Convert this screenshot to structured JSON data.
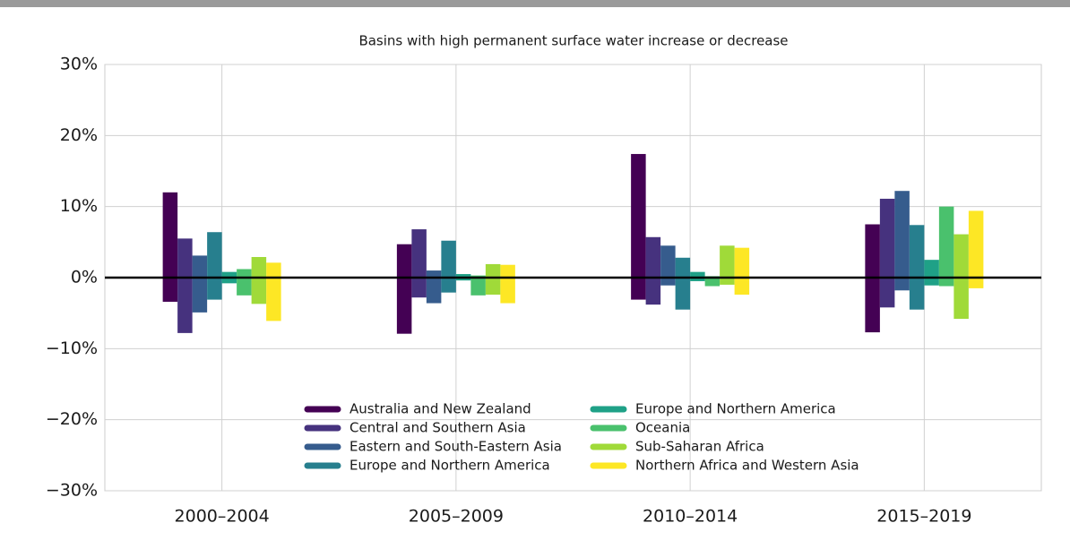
{
  "chart_data": {
    "type": "bar",
    "title": "Basins with high permanent surface water increase or decrease",
    "categories": [
      "2000–2004",
      "2005–2009",
      "2010–2014",
      "2015–2019"
    ],
    "series": [
      {
        "name": "Australia and New Zealand",
        "color": "#440154",
        "increase": [
          12,
          4.7,
          17.4,
          7.5
        ],
        "decrease": [
          -3.4,
          -7.9,
          -3.1,
          -7.7
        ]
      },
      {
        "name": "Central and Southern Asia",
        "color": "#46327e",
        "increase": [
          5.5,
          6.8,
          5.7,
          11.1
        ],
        "decrease": [
          -7.8,
          -2.8,
          -3.8,
          -4.2
        ]
      },
      {
        "name": "Eastern and South-Eastern Asia",
        "color": "#365c8d",
        "increase": [
          3.1,
          1.0,
          4.5,
          12.2
        ],
        "decrease": [
          -4.9,
          -3.6,
          -1.1,
          -1.8
        ]
      },
      {
        "name": "Europe and Northern America",
        "color": "#277f8e",
        "increase": [
          6.4,
          5.2,
          2.8,
          7.4
        ],
        "decrease": [
          -3.1,
          -2.1,
          -4.5,
          -4.5
        ]
      },
      {
        "name": "Europe and Northern America",
        "color": "#1fa187",
        "increase": [
          0.8,
          0.5,
          0.8,
          2.5
        ],
        "decrease": [
          -0.8,
          -0.4,
          -0.5,
          -1.1
        ]
      },
      {
        "name": "Oceania",
        "color": "#4ac16d",
        "increase": [
          1.2,
          0.3,
          0.2,
          10.0
        ],
        "decrease": [
          -2.5,
          -2.5,
          -1.2,
          -1.2
        ]
      },
      {
        "name": "Sub-Saharan Africa",
        "color": "#a0da39",
        "increase": [
          2.9,
          1.9,
          4.5,
          6.1
        ],
        "decrease": [
          -3.7,
          -2.4,
          -1.0,
          -5.8
        ]
      },
      {
        "name": "Northern Africa and Western Asia",
        "color": "#fde725",
        "increase": [
          2.1,
          1.8,
          4.2,
          9.4
        ],
        "decrease": [
          -6.1,
          -3.6,
          -2.4,
          -1.5
        ]
      }
    ],
    "ylim": [
      -30,
      30
    ],
    "yticks": [
      {
        "value": -30,
        "label": "−30%"
      },
      {
        "value": -20,
        "label": "−20%"
      },
      {
        "value": -10,
        "label": "−10%"
      },
      {
        "value": 0,
        "label": "0%"
      },
      {
        "value": 10,
        "label": "10%"
      },
      {
        "value": 20,
        "label": "20%"
      },
      {
        "value": 30,
        "label": "30%"
      }
    ],
    "grid": true
  }
}
